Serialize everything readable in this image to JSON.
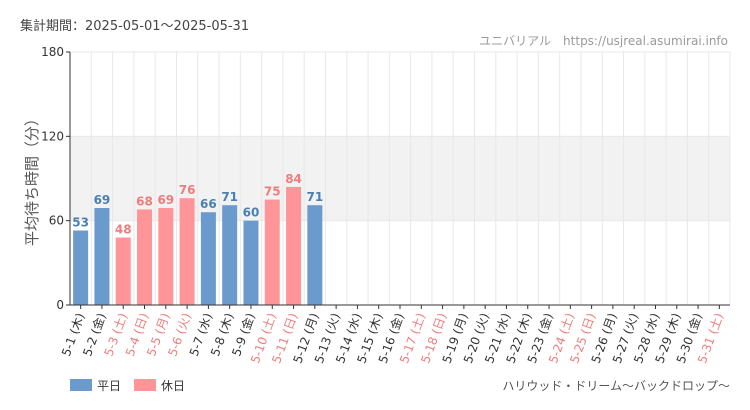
{
  "header": {
    "period_label": "集計期間：2025-05-01～2025-05-31",
    "site": "ユニバリアル　https://usjreal.asumirai.info"
  },
  "attraction": "ハリウッド・ドリーム～バックドロップ～",
  "legend": [
    {
      "name": "平日",
      "color": "#6b9bcc"
    },
    {
      "name": "休日",
      "color": "#ff9599"
    }
  ],
  "colors": {
    "weekday_bar": "#6b9bcc",
    "holiday_bar": "#ff9599",
    "weekday_label": "#4a7fb5",
    "holiday_label": "#f07c7c",
    "weekday_tick": "#333333",
    "holiday_tick": "#f07c7c",
    "band": "#f2f2f2",
    "grid": "#e8e8e8"
  },
  "chart_data": {
    "type": "bar",
    "title": "",
    "xlabel": "",
    "ylabel": "平均待ち時間（分）",
    "ylim": [
      0,
      180
    ],
    "yticks": [
      0,
      60,
      120,
      180
    ],
    "band": [
      60,
      120
    ],
    "grid": true,
    "legend_position": "bottom-left",
    "categories": [
      "5-1 (木)",
      "5-2 (金)",
      "5-3 (土)",
      "5-4 (日)",
      "5-5 (月)",
      "5-6 (火)",
      "5-7 (水)",
      "5-8 (木)",
      "5-9 (金)",
      "5-10 (土)",
      "5-11 (日)",
      "5-12 (月)",
      "5-13 (火)",
      "5-14 (水)",
      "5-15 (木)",
      "5-16 (金)",
      "5-17 (土)",
      "5-18 (日)",
      "5-19 (月)",
      "5-20 (火)",
      "5-21 (水)",
      "5-22 (木)",
      "5-23 (金)",
      "5-24 (土)",
      "5-25 (日)",
      "5-26 (月)",
      "5-27 (火)",
      "5-28 (水)",
      "5-29 (木)",
      "5-30 (金)",
      "5-31 (土)"
    ],
    "day_type": [
      "平日",
      "平日",
      "休日",
      "休日",
      "休日",
      "休日",
      "平日",
      "平日",
      "平日",
      "休日",
      "休日",
      "平日",
      "平日",
      "平日",
      "平日",
      "平日",
      "休日",
      "休日",
      "平日",
      "平日",
      "平日",
      "平日",
      "平日",
      "休日",
      "休日",
      "平日",
      "平日",
      "平日",
      "平日",
      "平日",
      "休日"
    ],
    "values": [
      53,
      69,
      48,
      68,
      69,
      76,
      66,
      71,
      60,
      75,
      84,
      71,
      null,
      null,
      null,
      null,
      null,
      null,
      null,
      null,
      null,
      null,
      null,
      null,
      null,
      null,
      null,
      null,
      null,
      null,
      null
    ]
  }
}
